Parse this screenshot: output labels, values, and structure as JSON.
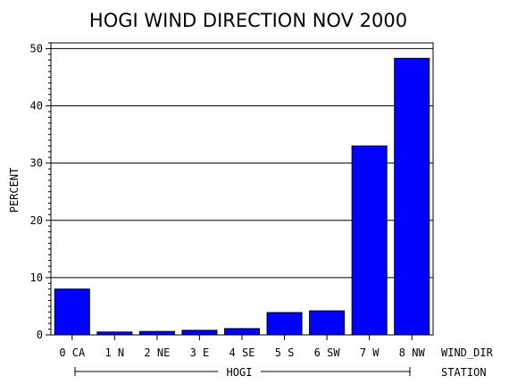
{
  "chart_data": {
    "type": "bar",
    "title": "HOGI WIND DIRECTION NOV 2000",
    "ylabel": "PERCENT",
    "xlabel": "WIND_DIR",
    "group_axis_label": "STATION",
    "group_label": "HOGI",
    "categories": [
      "0 CA",
      "1 N",
      "2 NE",
      "3 E",
      "4 SE",
      "5 S",
      "6 SW",
      "7 W",
      "8 NW"
    ],
    "values": [
      8.0,
      0.5,
      0.6,
      0.8,
      1.1,
      3.9,
      4.2,
      33.0,
      48.3
    ],
    "ylim": [
      0,
      51
    ],
    "yticks": [
      0,
      10,
      20,
      30,
      40,
      50
    ],
    "grid": true,
    "bar_color": "#0000ff"
  }
}
